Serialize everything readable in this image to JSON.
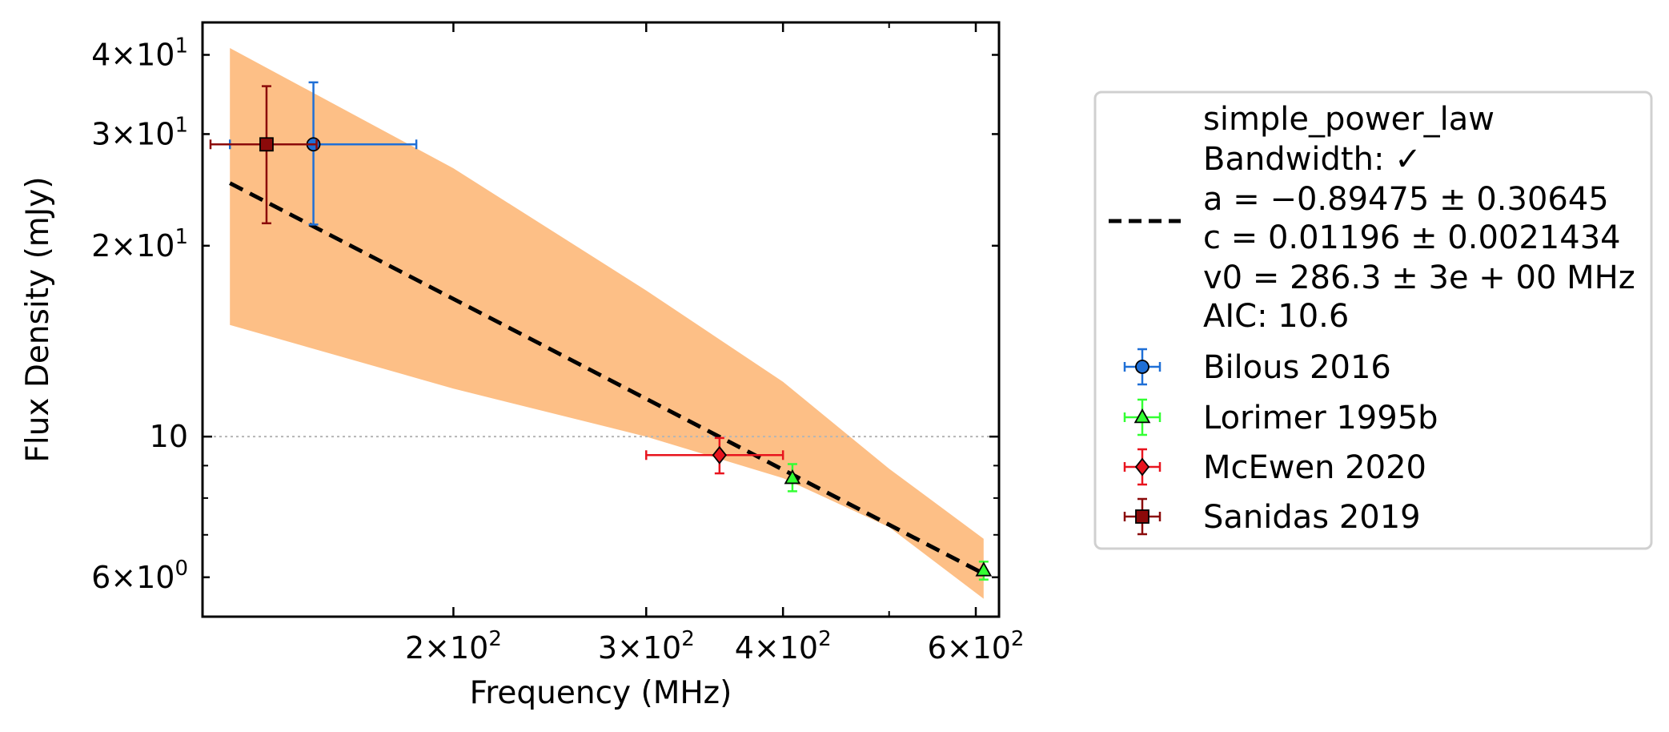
{
  "chart_data": {
    "type": "scatter",
    "title": "",
    "xlabel": "Frequency (MHz)",
    "ylabel": "Flux Density (mJy)",
    "x_scale": "log",
    "y_scale": "log",
    "xlim": [
      118,
      630
    ],
    "ylim": [
      5.2,
      45
    ],
    "x_ticks": [
      {
        "value": 200,
        "mant": "2",
        "exp": "2"
      },
      {
        "value": 300,
        "mant": "3",
        "exp": "2"
      },
      {
        "value": 400,
        "mant": "4",
        "exp": "2"
      },
      {
        "value": 600,
        "mant": "6",
        "exp": "2"
      }
    ],
    "y_ticks": [
      {
        "value": 6,
        "mant": "6",
        "exp": "0"
      },
      {
        "value": 10,
        "plain": "10"
      },
      {
        "value": 20,
        "mant": "2",
        "exp": "1"
      },
      {
        "value": 30,
        "mant": "3",
        "exp": "1"
      },
      {
        "value": 40,
        "mant": "4",
        "exp": "1"
      }
    ],
    "reference_line_y": 10,
    "grid": false,
    "legend_position": "outside-right",
    "fit": {
      "name": "simple_power_law",
      "a": -0.89475,
      "c": 0.01196,
      "v0": 286.3,
      "x_range": [
        125,
        610
      ],
      "band_x": [
        125,
        200,
        300,
        400,
        500,
        610
      ],
      "band_lower": [
        15.0,
        11.9,
        10.0,
        8.6,
        7.2,
        5.55
      ],
      "band_upper": [
        41.0,
        26.5,
        17.0,
        12.2,
        8.9,
        6.9
      ],
      "legend_lines": [
        "simple_power_law",
        "Bandwidth: ✓",
        "a = −0.89475 ± 0.30645",
        "c = 0.01196 ± 0.0021434",
        "v0 = 286.3 ± 3e + 00 MHz",
        "AIC: 10.6"
      ]
    },
    "series": [
      {
        "name": "Bilous 2016",
        "marker": "circle",
        "color": "#1f6fd6",
        "points": [
          {
            "x": 149,
            "y": 28.9,
            "x_err": [
              125,
              185
            ],
            "y_err": [
              21.6,
              36.2
            ]
          }
        ]
      },
      {
        "name": "Lorimer 1995b",
        "marker": "triangle",
        "color": "#33ff33",
        "points": [
          {
            "x": 408,
            "y": 8.6,
            "x_err": null,
            "y_err": [
              8.2,
              9.05
            ]
          },
          {
            "x": 610,
            "y": 6.15,
            "x_err": null,
            "y_err": [
              5.95,
              6.35
            ]
          }
        ]
      },
      {
        "name": "McEwen 2020",
        "marker": "diamond",
        "color": "#e8141e",
        "points": [
          {
            "x": 350,
            "y": 9.35,
            "x_err": [
              300,
              400
            ],
            "y_err": [
              8.75,
              9.95
            ]
          }
        ]
      },
      {
        "name": "Sanidas 2019",
        "marker": "square",
        "color": "#8b0a0a",
        "points": [
          {
            "x": 135,
            "y": 28.9,
            "x_err": [
              120,
              150
            ],
            "y_err": [
              21.7,
              35.7
            ]
          }
        ]
      }
    ]
  }
}
